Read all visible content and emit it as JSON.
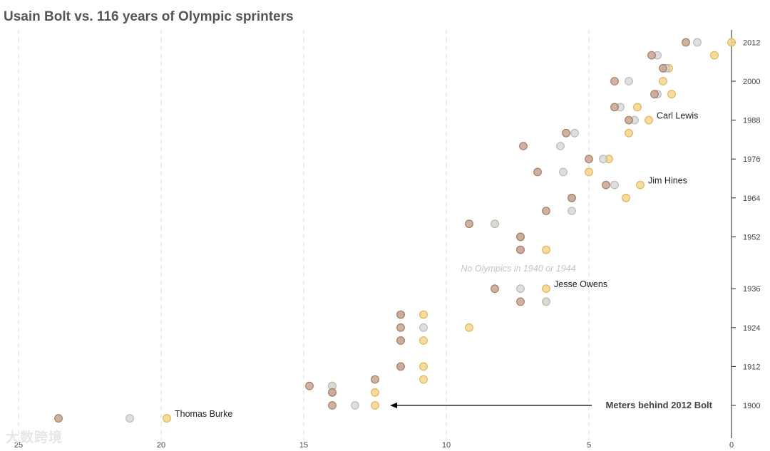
{
  "chart_data": {
    "type": "scatter",
    "title": "Usain Bolt vs. 116 years of Olympic sprinters",
    "xlabel": "",
    "ylabel": "",
    "xlim": [
      25,
      0
    ],
    "x_ticks": [
      25,
      20,
      15,
      10,
      5,
      0
    ],
    "y_ticks": [
      1900,
      1912,
      1924,
      1936,
      1952,
      1964,
      1976,
      1988,
      2000,
      2012
    ],
    "medal_colors": {
      "gold": "#f4d68c",
      "silver": "#d9d9d9",
      "bronze": "#c9a391"
    },
    "series": [
      {
        "name": "gold",
        "points": [
          {
            "year": 2012,
            "x": 0
          },
          {
            "year": 2008,
            "x": 0.6
          },
          {
            "year": 2004,
            "x": 2.2
          },
          {
            "year": 2000,
            "x": 2.4
          },
          {
            "year": 1996,
            "x": 2.1
          },
          {
            "year": 1992,
            "x": 3.3
          },
          {
            "year": 1988,
            "x": 2.9
          },
          {
            "year": 1984,
            "x": 3.6
          },
          {
            "year": 1976,
            "x": 4.3
          },
          {
            "year": 1972,
            "x": 5.0
          },
          {
            "year": 1968,
            "x": 3.2
          },
          {
            "year": 1964,
            "x": 3.7
          },
          {
            "year": 1956,
            "x": 8.3
          },
          {
            "year": 1952,
            "x": 7.4
          },
          {
            "year": 1948,
            "x": 6.5
          },
          {
            "year": 1936,
            "x": 6.5
          },
          {
            "year": 1932,
            "x": 6.5
          },
          {
            "year": 1928,
            "x": 10.8
          },
          {
            "year": 1924,
            "x": 9.2
          },
          {
            "year": 1920,
            "x": 10.8
          },
          {
            "year": 1912,
            "x": 10.8
          },
          {
            "year": 1908,
            "x": 10.8
          },
          {
            "year": 1906,
            "x": 14.0
          },
          {
            "year": 1904,
            "x": 12.5
          },
          {
            "year": 1900,
            "x": 12.5
          },
          {
            "year": 1896,
            "x": 19.8
          }
        ]
      },
      {
        "name": "silver",
        "points": [
          {
            "year": 2012,
            "x": 1.2
          },
          {
            "year": 2008,
            "x": 2.6
          },
          {
            "year": 2004,
            "x": 2.3
          },
          {
            "year": 2000,
            "x": 3.6
          },
          {
            "year": 1996,
            "x": 2.6
          },
          {
            "year": 1992,
            "x": 3.9
          },
          {
            "year": 1988,
            "x": 3.4
          },
          {
            "year": 1984,
            "x": 5.5
          },
          {
            "year": 1980,
            "x": 6.0
          },
          {
            "year": 1976,
            "x": 4.5
          },
          {
            "year": 1972,
            "x": 5.9
          },
          {
            "year": 1968,
            "x": 4.1
          },
          {
            "year": 1964,
            "x": 5.6
          },
          {
            "year": 1960,
            "x": 5.6
          },
          {
            "year": 1956,
            "x": 8.3
          },
          {
            "year": 1952,
            "x": 7.4
          },
          {
            "year": 1948,
            "x": 7.4
          },
          {
            "year": 1936,
            "x": 7.4
          },
          {
            "year": 1932,
            "x": 6.5
          },
          {
            "year": 1928,
            "x": 11.6
          },
          {
            "year": 1924,
            "x": 10.8
          },
          {
            "year": 1920,
            "x": 11.6
          },
          {
            "year": 1912,
            "x": 11.6
          },
          {
            "year": 1906,
            "x": 14.0
          },
          {
            "year": 1904,
            "x": 14.0
          },
          {
            "year": 1900,
            "x": 13.2
          },
          {
            "year": 1896,
            "x": 21.1
          }
        ]
      },
      {
        "name": "bronze",
        "points": [
          {
            "year": 2012,
            "x": 1.6
          },
          {
            "year": 2008,
            "x": 2.8
          },
          {
            "year": 2004,
            "x": 2.4
          },
          {
            "year": 2000,
            "x": 4.1
          },
          {
            "year": 1996,
            "x": 2.7
          },
          {
            "year": 1992,
            "x": 4.1
          },
          {
            "year": 1988,
            "x": 3.6
          },
          {
            "year": 1984,
            "x": 5.8
          },
          {
            "year": 1980,
            "x": 7.3
          },
          {
            "year": 1976,
            "x": 5.0
          },
          {
            "year": 1972,
            "x": 6.8
          },
          {
            "year": 1968,
            "x": 4.4
          },
          {
            "year": 1964,
            "x": 5.6
          },
          {
            "year": 1960,
            "x": 6.5
          },
          {
            "year": 1956,
            "x": 9.2
          },
          {
            "year": 1952,
            "x": 7.4
          },
          {
            "year": 1948,
            "x": 7.4
          },
          {
            "year": 1936,
            "x": 8.3
          },
          {
            "year": 1932,
            "x": 7.4
          },
          {
            "year": 1928,
            "x": 11.6
          },
          {
            "year": 1924,
            "x": 11.6
          },
          {
            "year": 1920,
            "x": 11.6
          },
          {
            "year": 1912,
            "x": 11.6
          },
          {
            "year": 1908,
            "x": 12.5
          },
          {
            "year": 1906,
            "x": 14.8
          },
          {
            "year": 1904,
            "x": 14.0
          },
          {
            "year": 1900,
            "x": 14.0
          },
          {
            "year": 1896,
            "x": 23.6
          }
        ]
      }
    ],
    "annotations": [
      {
        "text": "Carl Lewis",
        "year": 1988
      },
      {
        "text": "Jim Hines",
        "year": 1968
      },
      {
        "text": "Jesse Owens",
        "year": 1936
      },
      {
        "text": "Thomas Burke",
        "year": 1896
      }
    ],
    "note": "No Olympics in 1940 or 1944",
    "arrow_label": "Meters behind 2012 Bolt"
  },
  "watermark": "大数跨境"
}
